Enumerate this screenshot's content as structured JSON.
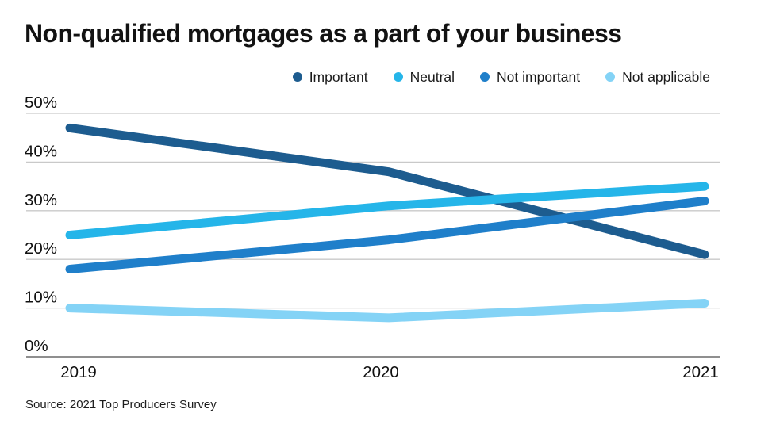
{
  "title": "Non-qualified mortgages as a part of your business",
  "source": "Source: 2021 Top Producers Survey",
  "chart_data": {
    "type": "line",
    "title": "Non-qualified mortgages as a part of your business",
    "categories": [
      "2019",
      "2020",
      "2021"
    ],
    "series": [
      {
        "name": "Important",
        "color": "#1d5c8f",
        "values": [
          47,
          38,
          21
        ]
      },
      {
        "name": "Neutral",
        "color": "#25b5e9",
        "values": [
          25,
          31,
          35
        ]
      },
      {
        "name": "Not important",
        "color": "#1f7fca",
        "values": [
          18,
          24,
          32
        ]
      },
      {
        "name": "Not applicable",
        "color": "#84d3f6",
        "values": [
          10,
          8,
          11
        ]
      }
    ],
    "ylim": [
      0,
      50
    ],
    "ytick_values": [
      0,
      10,
      20,
      30,
      40,
      50
    ],
    "ytick_labels": [
      "0%",
      "10%",
      "20%",
      "30%",
      "40%",
      "50%"
    ],
    "grid": true,
    "legend_position": "top",
    "colors": {
      "gridline": "#c9c9c9",
      "baseline": "#8f8f8f",
      "tick_text": "#111111"
    }
  }
}
